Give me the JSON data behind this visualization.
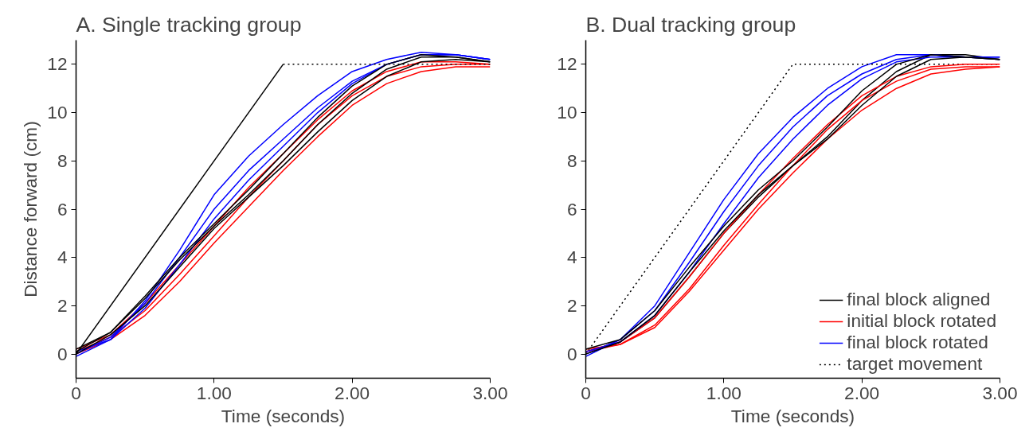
{
  "chart_data": [
    {
      "type": "line",
      "title": "A. Single tracking group",
      "xlabel": "Time (seconds)",
      "ylabel": "Distance forward (cm)",
      "x": [
        0,
        0.25,
        0.5,
        0.75,
        1.0,
        1.25,
        1.5,
        1.75,
        2.0,
        2.25,
        2.5,
        2.75,
        3.0
      ],
      "xlim": [
        0,
        3
      ],
      "ylim": [
        -1,
        13
      ],
      "xticks": [
        0,
        {
          "value": 1,
          "label": "1.00"
        },
        {
          "value": 2,
          "label": "2.00"
        },
        {
          "value": 3,
          "label": "3.00"
        }
      ],
      "yticks": [
        0,
        2,
        4,
        6,
        8,
        10,
        12
      ],
      "grid": false,
      "legend": false,
      "series": [
        {
          "color": "#ff0000",
          "line_style": "solid",
          "values": [
            0.1,
            0.7,
            1.8,
            3.3,
            4.9,
            6.5,
            8.0,
            9.5,
            10.7,
            11.5,
            11.9,
            12.0,
            12.0
          ]
        },
        {
          "color": "#ff0000",
          "line_style": "solid",
          "values": [
            0.0,
            0.6,
            1.6,
            3.0,
            4.6,
            6.1,
            7.6,
            9.0,
            10.3,
            11.2,
            11.7,
            11.9,
            11.9
          ]
        },
        {
          "color": "#ff0000",
          "line_style": "solid",
          "values": [
            0.2,
            0.8,
            2.1,
            3.7,
            5.3,
            6.9,
            8.3,
            9.7,
            10.9,
            11.7,
            12.1,
            12.1,
            12.0
          ]
        },
        {
          "color": "#0000ff",
          "line_style": "solid",
          "values": [
            0.0,
            0.7,
            2.1,
            4.0,
            6.0,
            7.6,
            8.9,
            10.2,
            11.3,
            12.0,
            12.4,
            12.4,
            12.2
          ]
        },
        {
          "color": "#0000ff",
          "line_style": "solid",
          "values": [
            -0.1,
            0.6,
            2.2,
            4.3,
            6.6,
            8.2,
            9.5,
            10.7,
            11.7,
            12.2,
            12.5,
            12.4,
            12.2
          ]
        },
        {
          "color": "#0000ff",
          "line_style": "solid",
          "values": [
            0.1,
            0.6,
            1.9,
            3.7,
            5.6,
            7.2,
            8.6,
            10.0,
            11.2,
            12.0,
            12.4,
            12.4,
            12.2
          ]
        },
        {
          "color": "#000000",
          "line_style": "solid",
          "values": [
            0.1,
            0.9,
            2.3,
            3.9,
            5.3,
            6.6,
            8.0,
            9.5,
            10.8,
            11.8,
            12.3,
            12.3,
            12.1
          ]
        },
        {
          "color": "#000000",
          "line_style": "solid",
          "values": [
            0.0,
            0.8,
            2.0,
            3.6,
            5.2,
            6.5,
            7.8,
            9.2,
            10.5,
            11.5,
            12.1,
            12.2,
            12.1
          ]
        },
        {
          "color": "#000000",
          "line_style": "solid",
          "values": [
            0.2,
            0.9,
            2.4,
            4.0,
            5.4,
            6.8,
            8.3,
            9.8,
            11.1,
            12.0,
            12.4,
            12.3,
            12.1
          ]
        },
        {
          "color": "#000000",
          "line_style": "solid",
          "x": [
            0,
            1.5
          ],
          "values": [
            0,
            12
          ]
        },
        {
          "color": "#000000",
          "line_style": "dotted",
          "x": [
            1.5,
            3.0
          ],
          "values": [
            12,
            12
          ]
        }
      ]
    },
    {
      "type": "line",
      "title": "B. Dual tracking group",
      "xlabel": "Time (seconds)",
      "x": [
        0,
        0.25,
        0.5,
        0.75,
        1.0,
        1.25,
        1.5,
        1.75,
        2.0,
        2.25,
        2.5,
        2.75,
        3.0
      ],
      "xlim": [
        0,
        3
      ],
      "ylim": [
        -1,
        13
      ],
      "xticks": [
        0,
        {
          "value": 1,
          "label": "1.00"
        },
        {
          "value": 2,
          "label": "2.00"
        },
        {
          "value": 3,
          "label": "3.00"
        }
      ],
      "yticks": [
        0,
        2,
        4,
        6,
        8,
        10,
        12
      ],
      "grid": false,
      "legend": "bottom right",
      "series": [
        {
          "name": "final block aligned",
          "color": "#000000",
          "line_style": "solid",
          "values": [
            0.1,
            0.5,
            1.5,
            3.2,
            5.0,
            6.5,
            7.8,
            9.0,
            10.5,
            11.7,
            12.4,
            12.4,
            12.2
          ]
        },
        {
          "name": "initial block rotated",
          "color": "#ff0000",
          "line_style": "solid",
          "values": [
            0.1,
            0.4,
            1.2,
            2.7,
            4.5,
            6.2,
            7.8,
            9.3,
            10.5,
            11.3,
            11.8,
            11.9,
            11.9
          ]
        },
        {
          "name": "final block rotated",
          "color": "#0000ff",
          "line_style": "solid",
          "values": [
            0.0,
            0.6,
            2.0,
            4.2,
            6.4,
            8.3,
            9.8,
            11.0,
            11.9,
            12.4,
            12.4,
            12.3,
            12.3
          ]
        },
        {
          "name": "target movement",
          "color": "#000000",
          "line_style": "dotted",
          "x": [
            0,
            1.5,
            3.0
          ],
          "values": [
            0,
            12,
            12
          ]
        },
        {
          "color": "#ff0000",
          "line_style": "solid",
          "values": [
            0.1,
            0.5,
            1.5,
            3.2,
            5.0,
            6.6,
            8.1,
            9.5,
            10.7,
            11.5,
            11.9,
            12.0,
            12.0
          ]
        },
        {
          "color": "#ff0000",
          "line_style": "solid",
          "values": [
            0.2,
            0.4,
            1.1,
            2.6,
            4.3,
            6.0,
            7.5,
            8.9,
            10.1,
            11.0,
            11.6,
            11.8,
            11.9
          ]
        },
        {
          "color": "#0000ff",
          "line_style": "solid",
          "values": [
            -0.1,
            0.6,
            1.8,
            3.8,
            5.9,
            7.8,
            9.4,
            10.7,
            11.6,
            12.2,
            12.4,
            12.3,
            12.2
          ]
        },
        {
          "color": "#0000ff",
          "line_style": "solid",
          "values": [
            0.1,
            0.5,
            1.6,
            3.4,
            5.4,
            7.3,
            8.9,
            10.3,
            11.4,
            12.1,
            12.3,
            12.3,
            12.3
          ]
        },
        {
          "color": "#000000",
          "line_style": "solid",
          "values": [
            0.2,
            0.6,
            1.8,
            3.6,
            5.3,
            6.8,
            8.0,
            9.4,
            10.9,
            12.0,
            12.4,
            12.3,
            12.2
          ]
        },
        {
          "color": "#000000",
          "line_style": "solid",
          "values": [
            0.0,
            0.5,
            1.6,
            3.4,
            5.1,
            6.6,
            7.8,
            8.9,
            10.3,
            11.5,
            12.2,
            12.3,
            12.2
          ]
        }
      ]
    }
  ]
}
